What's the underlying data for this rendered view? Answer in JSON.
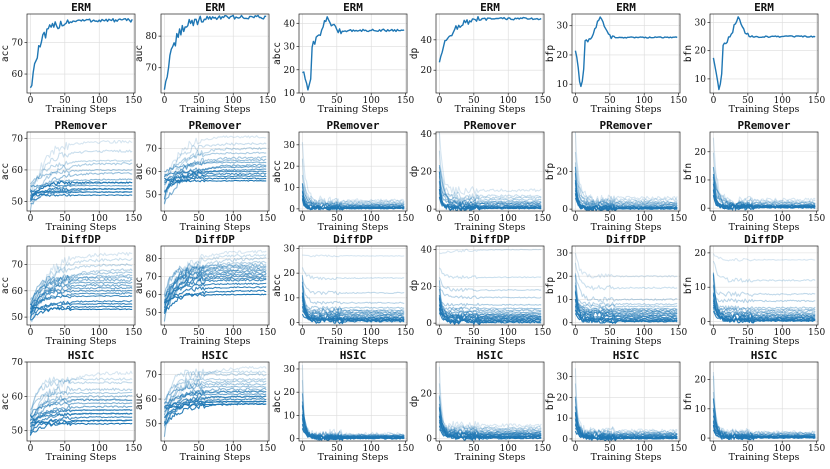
{
  "figure": {
    "line_color": "#1f77b4",
    "x_axis_label": "Training Steps",
    "x_ticks": [
      0,
      50,
      100,
      150
    ],
    "xlim": [
      -5,
      152
    ],
    "columns": [
      "acc",
      "auc",
      "abcc",
      "dp",
      "bfp",
      "bfn"
    ],
    "rows": [
      "ERM",
      "PRemover",
      "DiffDP",
      "HSIC"
    ]
  },
  "chart_data": [
    {
      "type": "line",
      "method": "ERM",
      "metric": "acc",
      "title": "ERM",
      "xlabel": "Training Steps",
      "ylabel": "acc",
      "ylim": [
        54,
        79
      ],
      "yticks": [
        60,
        70
      ],
      "n_series": 1,
      "series_start": [
        55
      ],
      "series_end": [
        77
      ]
    },
    {
      "type": "line",
      "method": "ERM",
      "metric": "auc",
      "title": "ERM",
      "xlabel": "Training Steps",
      "ylabel": "auc",
      "ylim": [
        62,
        87
      ],
      "yticks": [
        70,
        80
      ],
      "n_series": 1,
      "series_start": [
        63
      ],
      "series_end": [
        86
      ]
    },
    {
      "type": "line",
      "method": "ERM",
      "metric": "abcc",
      "title": "ERM",
      "xlabel": "Training Steps",
      "ylabel": "abcc",
      "ylim": [
        10,
        44
      ],
      "yticks": [
        10,
        20,
        30,
        40
      ],
      "n_series": 1,
      "series_start": [
        20
      ],
      "series_end": [
        37
      ]
    },
    {
      "type": "line",
      "method": "ERM",
      "metric": "dp",
      "title": "ERM",
      "xlabel": "Training Steps",
      "ylabel": "dp",
      "ylim": [
        5,
        57
      ],
      "yticks": [
        20,
        40
      ],
      "n_series": 1,
      "series_start": [
        27
      ],
      "series_end": [
        54
      ]
    },
    {
      "type": "line",
      "method": "ERM",
      "metric": "bfp",
      "title": "ERM",
      "xlabel": "Training Steps",
      "ylabel": "bfp",
      "ylim": [
        7,
        34
      ],
      "yticks": [
        10,
        20,
        30
      ],
      "n_series": 1,
      "series_start": [
        22
      ],
      "series_end": [
        26
      ]
    },
    {
      "type": "line",
      "method": "ERM",
      "metric": "bfn",
      "title": "ERM",
      "xlabel": "Training Steps",
      "ylabel": "bfn",
      "ylim": [
        5,
        33
      ],
      "yticks": [
        10,
        20,
        30
      ],
      "n_series": 1,
      "series_start": [
        18
      ],
      "series_end": [
        25
      ]
    },
    {
      "type": "line",
      "method": "PRemover",
      "metric": "acc",
      "title": "PRemover",
      "xlabel": "Training Steps",
      "ylabel": "acc",
      "ylim": [
        47,
        72
      ],
      "yticks": [
        50,
        60,
        70
      ],
      "n_series": 15,
      "series_start": [
        50,
        52,
        54,
        48,
        56,
        51,
        53,
        49,
        55,
        50,
        52,
        54,
        51,
        53,
        50
      ],
      "series_end": [
        69,
        66,
        63,
        62,
        60,
        59,
        57,
        56,
        55,
        54,
        53,
        53,
        54,
        52,
        56
      ]
    },
    {
      "type": "line",
      "method": "PRemover",
      "metric": "auc",
      "title": "PRemover",
      "xlabel": "Training Steps",
      "ylabel": "auc",
      "ylim": [
        43,
        77
      ],
      "yticks": [
        50,
        60,
        70
      ],
      "n_series": 15,
      "series_start": [
        52,
        55,
        48,
        58,
        50,
        54,
        60,
        46,
        56,
        52,
        58,
        49,
        55,
        51,
        57
      ],
      "series_end": [
        75,
        72,
        70,
        68,
        66,
        65,
        64,
        63,
        62,
        61,
        60,
        59,
        58,
        57,
        56
      ]
    },
    {
      "type": "line",
      "method": "PRemover",
      "metric": "abcc",
      "title": "PRemover",
      "xlabel": "Training Steps",
      "ylabel": "abcc",
      "ylim": [
        -1,
        36
      ],
      "yticks": [
        0,
        10,
        20,
        30
      ],
      "n_series": 15,
      "series_start": [
        33,
        22,
        15,
        10,
        8,
        12,
        6,
        9,
        5,
        7,
        11,
        4,
        6,
        8,
        5
      ],
      "series_end": [
        4,
        3.5,
        3,
        2.5,
        2,
        1.8,
        1.5,
        1.2,
        1,
        0.8,
        0.6,
        0.5,
        0.4,
        0.3,
        0.2
      ]
    },
    {
      "type": "line",
      "method": "PRemover",
      "metric": "dp",
      "title": "PRemover",
      "xlabel": "Training Steps",
      "ylabel": "dp",
      "ylim": [
        -1,
        41
      ],
      "yticks": [
        0,
        20,
        40
      ],
      "n_series": 15,
      "series_start": [
        40,
        30,
        22,
        15,
        12,
        18,
        9,
        25,
        8,
        14,
        10,
        6,
        20,
        11,
        7
      ],
      "series_end": [
        10,
        7,
        6,
        5,
        4,
        3.5,
        3,
        2.5,
        2,
        1.5,
        1.2,
        1,
        0.8,
        0.6,
        0.4
      ]
    },
    {
      "type": "line",
      "method": "PRemover",
      "metric": "bfp",
      "title": "PRemover",
      "xlabel": "Training Steps",
      "ylabel": "bfp",
      "ylim": [
        -1,
        41
      ],
      "yticks": [
        0,
        20
      ],
      "n_series": 15,
      "series_start": [
        40,
        30,
        25,
        20,
        15,
        12,
        10,
        18,
        8,
        22,
        14,
        6,
        16,
        9,
        11
      ],
      "series_end": [
        6,
        5,
        4,
        3.5,
        3,
        2.5,
        2,
        1.5,
        1.2,
        1,
        0.8,
        0.6,
        0.4,
        0.3,
        0.2
      ]
    },
    {
      "type": "line",
      "method": "PRemover",
      "metric": "bfn",
      "title": "PRemover",
      "xlabel": "Training Steps",
      "ylabel": "bfn",
      "ylim": [
        -1,
        27
      ],
      "yticks": [
        0,
        10,
        20
      ],
      "n_series": 15,
      "series_start": [
        25,
        20,
        15,
        12,
        10,
        8,
        14,
        6,
        11,
        7,
        9,
        5,
        13,
        4,
        6
      ],
      "series_end": [
        3,
        2.5,
        2,
        1.8,
        1.5,
        1.2,
        1,
        0.9,
        0.8,
        0.7,
        0.6,
        0.5,
        0.4,
        0.3,
        0.2
      ]
    },
    {
      "type": "line",
      "method": "DiffDP",
      "metric": "acc",
      "title": "DiffDP",
      "xlabel": "Training Steps",
      "ylabel": "acc",
      "ylim": [
        47,
        77
      ],
      "yticks": [
        50,
        60,
        70
      ],
      "n_series": 18,
      "series_start": [
        50,
        52,
        54,
        48,
        56,
        51,
        53,
        49,
        55,
        50,
        52,
        54,
        51,
        53,
        50,
        52,
        49,
        55
      ],
      "series_end": [
        74,
        72,
        70,
        68,
        67,
        66,
        65,
        64,
        63,
        62,
        61,
        60,
        59,
        58,
        56,
        55,
        54,
        53
      ]
    },
    {
      "type": "line",
      "method": "DiffDP",
      "metric": "auc",
      "title": "DiffDP",
      "xlabel": "Training Steps",
      "ylabel": "auc",
      "ylim": [
        43,
        87
      ],
      "yticks": [
        50,
        60,
        70,
        80
      ],
      "n_series": 18,
      "series_start": [
        52,
        55,
        48,
        58,
        50,
        54,
        60,
        46,
        56,
        52,
        58,
        49,
        55,
        51,
        57,
        53,
        50,
        56
      ],
      "series_end": [
        84,
        82,
        80,
        78,
        77,
        76,
        75,
        74,
        73,
        72,
        71,
        70,
        69,
        68,
        66,
        64,
        62,
        60
      ]
    },
    {
      "type": "line",
      "method": "DiffDP",
      "metric": "abcc",
      "title": "DiffDP",
      "xlabel": "Training Steps",
      "ylabel": "abcc",
      "ylim": [
        -1,
        31
      ],
      "yticks": [
        0,
        10,
        20,
        30
      ],
      "n_series": 18,
      "series_start": [
        27,
        22,
        18,
        15,
        12,
        10,
        20,
        8,
        14,
        6,
        16,
        9,
        11,
        5,
        7,
        13,
        4,
        10
      ],
      "series_end": [
        27,
        18,
        12,
        8,
        6,
        5,
        4.5,
        4,
        3.5,
        3,
        2.5,
        2,
        1.8,
        1.5,
        1.2,
        1,
        0.8,
        0.5
      ]
    },
    {
      "type": "line",
      "method": "DiffDP",
      "metric": "dp",
      "title": "DiffDP",
      "xlabel": "Training Steps",
      "ylabel": "dp",
      "ylim": [
        -1,
        42
      ],
      "yticks": [
        0,
        20,
        40
      ],
      "n_series": 18,
      "series_start": [
        38,
        30,
        25,
        20,
        15,
        12,
        22,
        10,
        18,
        8,
        14,
        6,
        16,
        9,
        11,
        5,
        7,
        13
      ],
      "series_end": [
        40,
        25,
        18,
        14,
        10,
        8,
        7,
        6,
        5,
        4.5,
        4,
        3.5,
        3,
        2.5,
        2,
        1.5,
        1,
        0.5
      ]
    },
    {
      "type": "line",
      "method": "DiffDP",
      "metric": "bfp",
      "title": "DiffDP",
      "xlabel": "Training Steps",
      "ylabel": "bfp",
      "ylim": [
        -1,
        33
      ],
      "yticks": [
        0,
        10,
        20,
        30
      ],
      "n_series": 18,
      "series_start": [
        30,
        26,
        22,
        18,
        15,
        12,
        20,
        10,
        16,
        8,
        14,
        6,
        11,
        9,
        5,
        7,
        13,
        4
      ],
      "series_end": [
        20,
        15,
        10,
        8,
        7,
        6,
        5.5,
        5,
        4.5,
        4,
        3.5,
        3,
        2.5,
        2,
        1.5,
        1,
        0.8,
        0.5
      ]
    },
    {
      "type": "line",
      "method": "DiffDP",
      "metric": "bfn",
      "title": "DiffDP",
      "xlabel": "Training Steps",
      "ylabel": "bfn",
      "ylim": [
        -1,
        22
      ],
      "yticks": [
        0,
        10,
        20
      ],
      "n_series": 18,
      "series_start": [
        20,
        18,
        15,
        12,
        10,
        8,
        14,
        6,
        11,
        7,
        9,
        5,
        13,
        4,
        6,
        3,
        8,
        5
      ],
      "series_end": [
        18,
        12,
        8,
        6,
        4,
        3.5,
        3,
        2.5,
        2,
        1.8,
        1.5,
        1.2,
        1,
        0.8,
        0.6,
        0.4,
        0.3,
        0.2
      ]
    },
    {
      "type": "line",
      "method": "HSIC",
      "metric": "acc",
      "title": "HSIC",
      "xlabel": "Training Steps",
      "ylabel": "acc",
      "ylim": [
        47,
        70
      ],
      "yticks": [
        50,
        60,
        70
      ],
      "n_series": 18,
      "series_start": [
        50,
        52,
        54,
        48,
        56,
        51,
        53,
        49,
        55,
        50,
        52,
        54,
        51,
        53,
        50,
        52,
        49,
        55
      ],
      "series_end": [
        67,
        65,
        64,
        62,
        61,
        60,
        59,
        59,
        58,
        57,
        56,
        56,
        55,
        55,
        54,
        53,
        53,
        52
      ]
    },
    {
      "type": "line",
      "method": "HSIC",
      "metric": "auc",
      "title": "HSIC",
      "xlabel": "Training Steps",
      "ylabel": "auc",
      "ylim": [
        43,
        75
      ],
      "yticks": [
        50,
        60,
        70
      ],
      "n_series": 18,
      "series_start": [
        52,
        55,
        48,
        58,
        50,
        54,
        60,
        46,
        56,
        52,
        58,
        49,
        55,
        51,
        57,
        53,
        50,
        56
      ],
      "series_end": [
        73,
        71,
        70,
        68,
        67,
        66,
        65,
        64,
        63,
        63,
        62,
        61,
        61,
        60,
        59,
        59,
        58,
        58
      ]
    },
    {
      "type": "line",
      "method": "HSIC",
      "metric": "abcc",
      "title": "HSIC",
      "xlabel": "Training Steps",
      "ylabel": "abcc",
      "ylim": [
        -1,
        33
      ],
      "yticks": [
        0,
        10,
        20,
        30
      ],
      "n_series": 18,
      "series_start": [
        31,
        25,
        20,
        15,
        12,
        10,
        18,
        8,
        14,
        6,
        16,
        9,
        11,
        5,
        7,
        13,
        4,
        10
      ],
      "series_end": [
        2,
        1.8,
        1.6,
        1.4,
        1.3,
        1.2,
        1.1,
        1,
        0.9,
        0.8,
        0.7,
        0.6,
        0.5,
        0.5,
        0.4,
        0.3,
        0.2,
        0.1
      ]
    },
    {
      "type": "line",
      "method": "HSIC",
      "metric": "dp",
      "title": "HSIC",
      "xlabel": "Training Steps",
      "ylabel": "dp",
      "ylim": [
        -1,
        34
      ],
      "yticks": [
        0,
        20
      ],
      "n_series": 18,
      "series_start": [
        32,
        25,
        20,
        15,
        12,
        10,
        18,
        8,
        14,
        6,
        16,
        9,
        11,
        5,
        7,
        13,
        4,
        10
      ],
      "series_end": [
        6,
        5,
        4.5,
        4,
        3.5,
        3,
        2.8,
        2.5,
        2.2,
        2,
        1.8,
        1.5,
        1.2,
        1,
        0.8,
        0.6,
        0.4,
        0.2
      ]
    },
    {
      "type": "line",
      "method": "HSIC",
      "metric": "bfp",
      "title": "HSIC",
      "xlabel": "Training Steps",
      "ylabel": "bfp",
      "ylim": [
        -1,
        37
      ],
      "yticks": [
        0,
        10,
        20,
        30
      ],
      "n_series": 18,
      "series_start": [
        35,
        28,
        22,
        18,
        15,
        12,
        20,
        10,
        16,
        8,
        14,
        6,
        11,
        9,
        5,
        7,
        13,
        4
      ],
      "series_end": [
        4,
        3.5,
        3,
        2.8,
        2.5,
        2.2,
        2,
        1.8,
        1.5,
        1.3,
        1.1,
        1,
        0.8,
        0.6,
        0.5,
        0.4,
        0.3,
        0.2
      ]
    },
    {
      "type": "line",
      "method": "HSIC",
      "metric": "bfn",
      "title": "HSIC",
      "xlabel": "Training Steps",
      "ylabel": "bfn",
      "ylim": [
        -1,
        26
      ],
      "yticks": [
        0,
        10,
        20
      ],
      "n_series": 18,
      "series_start": [
        24,
        20,
        15,
        12,
        10,
        8,
        14,
        6,
        11,
        7,
        9,
        5,
        13,
        4,
        6,
        3,
        8,
        5
      ],
      "series_end": [
        2,
        1.8,
        1.6,
        1.4,
        1.2,
        1,
        0.9,
        0.8,
        0.7,
        0.6,
        0.5,
        0.5,
        0.4,
        0.3,
        0.3,
        0.2,
        0.2,
        0.1
      ]
    }
  ]
}
